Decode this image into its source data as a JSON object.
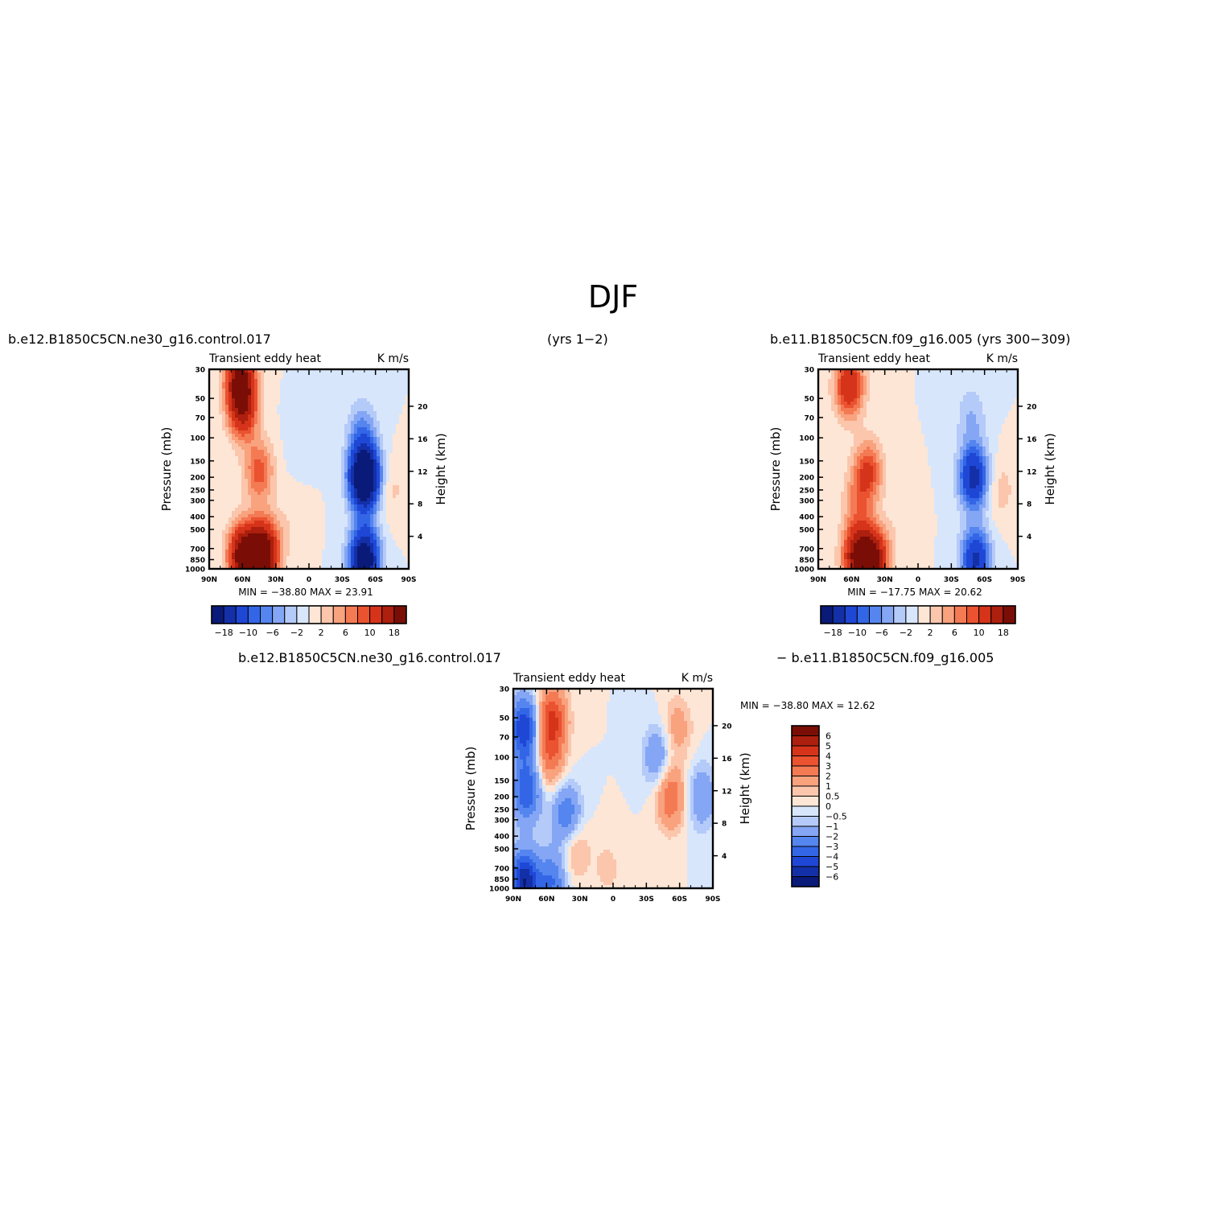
{
  "figure": {
    "title": "DJF",
    "left_case": "b.e12.B1850C5CN.ne30_g16.control.017",
    "left_years": "(yrs 1−2)",
    "right_case": "b.e11.B1850C5CN.f09_g16.005 (yrs 300−309)",
    "diff_case_a": "b.e12.B1850C5CN.ne30_g16.control.017",
    "diff_case_b": "− b.e11.B1850C5CN.f09_g16.005"
  },
  "colors": {
    "panel_levels": [
      "#0a1a78",
      "#1430a8",
      "#1f47d6",
      "#3366e6",
      "#5585ee",
      "#84a6f4",
      "#b4caf8",
      "#d8e6fc",
      "#fde6d6",
      "#fbc6ac",
      "#f9a27e",
      "#f47a54",
      "#ea5230",
      "#d5341a",
      "#ad1f0e",
      "#7a0e06"
    ],
    "diff_levels": [
      "#0a1a78",
      "#1430a8",
      "#1f47d6",
      "#3366e6",
      "#5585ee",
      "#84a6f4",
      "#b4caf8",
      "#d8e6fc",
      "#fde6d6",
      "#fbc6ac",
      "#f9a27e",
      "#f47a54",
      "#ea5230",
      "#d5341a",
      "#ad1f0e",
      "#7a0e06"
    ]
  },
  "chart_data": [
    {
      "type": "heatmap",
      "id": "control",
      "title_left": "Transient eddy heat",
      "title_right": "K m/s",
      "xlabel": "",
      "ylabel": "Pressure (mb)",
      "ylabel_right": "Height (km)",
      "x_ticks": [
        "90N",
        "60N",
        "30N",
        "0",
        "30S",
        "60S",
        "90S"
      ],
      "x_range": [
        90,
        -90
      ],
      "y_ticks": [
        30,
        50,
        70,
        100,
        150,
        200,
        250,
        300,
        400,
        500,
        700,
        850,
        1000
      ],
      "y_range_mb": [
        30,
        1000
      ],
      "y_scale": "log",
      "y_ticks_right_km": [
        20,
        16,
        12,
        8,
        4
      ],
      "min": "−38.80",
      "max": "23.91",
      "stats_label": "MIN = −38.80   MAX =   23.91",
      "colorbar_labels": [
        "−18",
        "−10",
        "−6",
        "−2",
        "2",
        "6",
        "10",
        "18"
      ],
      "features": [
        {
          "lat": 60,
          "p": 60,
          "value": 14
        },
        {
          "lat": 62,
          "p": 35,
          "value": 18
        },
        {
          "lat": 45,
          "p": 180,
          "value": 9
        },
        {
          "lat": 60,
          "p": 800,
          "value": 20
        },
        {
          "lat": 45,
          "p": 850,
          "value": 18
        },
        {
          "lat": 38,
          "p": 700,
          "value": 11
        },
        {
          "lat": -50,
          "p": 200,
          "value": -30
        },
        {
          "lat": -50,
          "p": 850,
          "value": -24
        },
        {
          "lat": -48,
          "p": 90,
          "value": -6
        },
        {
          "lat": -75,
          "p": 250,
          "value": 2.5
        },
        {
          "lat": 15,
          "p": 450,
          "value": 1.5
        },
        {
          "lat": 8,
          "p": 100,
          "value": -1.5
        }
      ]
    },
    {
      "type": "heatmap",
      "id": "reference",
      "title_left": "Transient eddy heat",
      "title_right": "K m/s",
      "xlabel": "",
      "ylabel": "Pressure (mb)",
      "ylabel_right": "Height (km)",
      "x_ticks": [
        "90N",
        "60N",
        "30N",
        "0",
        "30S",
        "60S",
        "90S"
      ],
      "x_range": [
        90,
        -90
      ],
      "y_ticks": [
        30,
        50,
        70,
        100,
        150,
        200,
        250,
        300,
        400,
        500,
        700,
        850,
        1000
      ],
      "y_range_mb": [
        30,
        1000
      ],
      "y_scale": "log",
      "y_ticks_right_km": [
        20,
        16,
        12,
        8,
        4
      ],
      "min": "−17.75",
      "max": "20.62",
      "stats_label": "MIN = −17.75   MAX =   20.62",
      "colorbar_labels": [
        "−18",
        "−10",
        "−6",
        "−2",
        "2",
        "6",
        "10",
        "18"
      ],
      "features": [
        {
          "lat": 62,
          "p": 40,
          "value": 14
        },
        {
          "lat": 45,
          "p": 180,
          "value": 10
        },
        {
          "lat": 55,
          "p": 800,
          "value": 18
        },
        {
          "lat": 40,
          "p": 850,
          "value": 19
        },
        {
          "lat": 55,
          "p": 300,
          "value": 5
        },
        {
          "lat": -50,
          "p": 200,
          "value": -16
        },
        {
          "lat": -52,
          "p": 850,
          "value": -15
        },
        {
          "lat": -48,
          "p": 70,
          "value": -4
        },
        {
          "lat": -75,
          "p": 250,
          "value": 3
        },
        {
          "lat": 15,
          "p": 450,
          "value": 1.5
        }
      ]
    },
    {
      "type": "heatmap",
      "id": "difference",
      "title_left": "Transient eddy heat",
      "title_right": "K m/s",
      "xlabel": "",
      "ylabel": "Pressure (mb)",
      "ylabel_right": "Height (km)",
      "x_ticks": [
        "90N",
        "60N",
        "30N",
        "0",
        "30S",
        "60S",
        "90S"
      ],
      "x_range": [
        90,
        -90
      ],
      "y_ticks": [
        30,
        50,
        70,
        100,
        150,
        200,
        250,
        300,
        400,
        500,
        700,
        850,
        1000
      ],
      "y_range_mb": [
        30,
        1000
      ],
      "y_scale": "log",
      "y_ticks_right_km": [
        20,
        16,
        12,
        8,
        4
      ],
      "min": "−38.80",
      "max": "12.62",
      "stats_label": "MIN = −38.80   MAX =   12.62",
      "colorbar_labels": [
        "6",
        "5",
        "4",
        "3",
        "2",
        "1",
        "0.5",
        "0",
        "−0.5",
        "−1",
        "−2",
        "−3",
        "−4",
        "−5",
        "−6"
      ],
      "features": [
        {
          "lat": 80,
          "p": 60,
          "value": -5
        },
        {
          "lat": 78,
          "p": 180,
          "value": -4
        },
        {
          "lat": 80,
          "p": 900,
          "value": -6
        },
        {
          "lat": 55,
          "p": 50,
          "value": 4
        },
        {
          "lat": 57,
          "p": 100,
          "value": 2.5
        },
        {
          "lat": 42,
          "p": 280,
          "value": -3
        },
        {
          "lat": 55,
          "p": 900,
          "value": -3
        },
        {
          "lat": 35,
          "p": 500,
          "value": 1.5
        },
        {
          "lat": -40,
          "p": 100,
          "value": -2
        },
        {
          "lat": -52,
          "p": 200,
          "value": 3
        },
        {
          "lat": -58,
          "p": 60,
          "value": 1.5
        },
        {
          "lat": -80,
          "p": 200,
          "value": -2
        },
        {
          "lat": 5,
          "p": 700,
          "value": 0.7
        }
      ]
    }
  ]
}
